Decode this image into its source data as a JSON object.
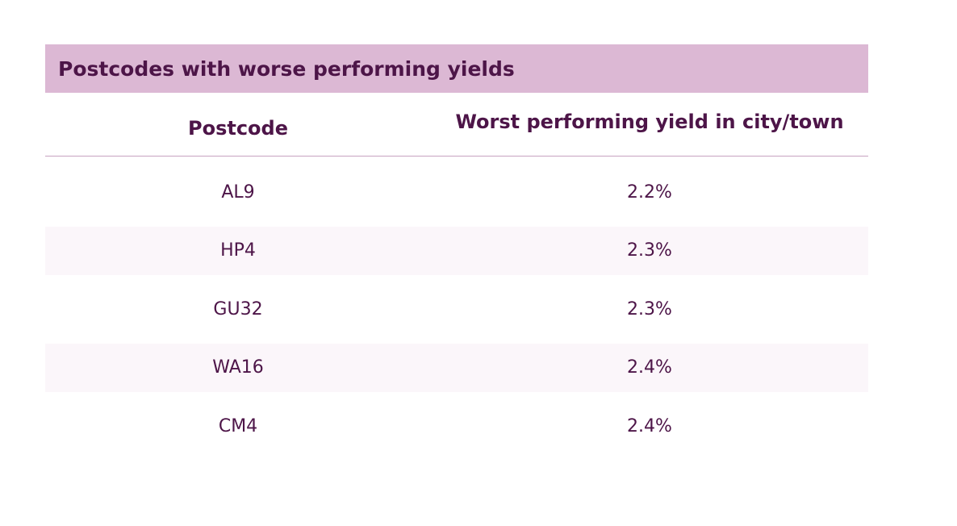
{
  "table": {
    "title": "Postcodes with worse performing yields",
    "headers": {
      "postcode": "Postcode",
      "yield": "Worst performing yield in city/town"
    },
    "rows": [
      {
        "postcode": "AL9",
        "yield": "2.2%"
      },
      {
        "postcode": "HP4",
        "yield": "2.3%"
      },
      {
        "postcode": "GU32",
        "yield": "2.3%"
      },
      {
        "postcode": "WA16",
        "yield": "2.4%"
      },
      {
        "postcode": "CM4",
        "yield": "2.4%"
      }
    ]
  },
  "colors": {
    "title_bg": "#dcb8d4",
    "text": "#4d1548",
    "alt_row_bg": "#fbf6fa",
    "divider": "#c7a2c1"
  }
}
